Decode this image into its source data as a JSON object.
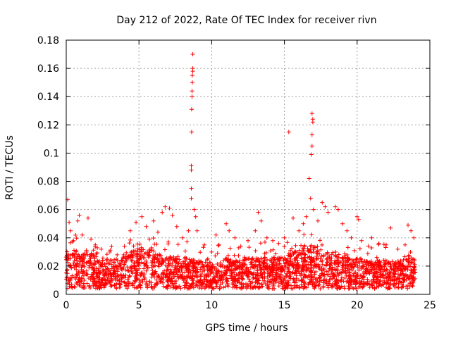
{
  "chart_data": {
    "type": "scatter",
    "title": "Day 212 of 2022, Rate Of TEC Index for receiver rivn",
    "xlabel": "GPS time / hours",
    "ylabel": "ROTI / TECUs",
    "xlim": [
      0,
      25
    ],
    "ylim": [
      0,
      0.18
    ],
    "xticks": [
      0,
      5,
      10,
      15,
      20,
      25
    ],
    "xtick_labels": [
      "0",
      "5",
      "10",
      "15",
      "20",
      "25"
    ],
    "yticks": [
      0,
      0.02,
      0.04,
      0.06,
      0.08,
      0.1,
      0.12,
      0.14,
      0.16,
      0.18
    ],
    "ytick_labels": [
      "0",
      "0.02",
      "0.04",
      "0.06",
      "0.08",
      "0.1",
      "0.12",
      "0.14",
      "0.16",
      "0.18"
    ],
    "grid": true,
    "marker": "+",
    "color": "#ff0000",
    "series": [
      {
        "name": "ROTI",
        "points": [
          [
            0.1,
            0.067
          ],
          [
            0.2,
            0.051
          ],
          [
            0.3,
            0.045
          ],
          [
            0.5,
            0.038
          ],
          [
            0.8,
            0.052
          ],
          [
            0.9,
            0.056
          ],
          [
            1.1,
            0.042
          ],
          [
            1.5,
            0.054
          ],
          [
            1.7,
            0.039
          ],
          [
            2.0,
            0.035
          ],
          [
            2.4,
            0.032
          ],
          [
            3.0,
            0.03
          ],
          [
            3.5,
            0.028
          ],
          [
            4.0,
            0.034
          ],
          [
            4.4,
            0.045
          ],
          [
            4.8,
            0.051
          ],
          [
            5.2,
            0.055
          ],
          [
            5.5,
            0.048
          ],
          [
            6.0,
            0.052
          ],
          [
            6.3,
            0.044
          ],
          [
            6.6,
            0.058
          ],
          [
            6.8,
            0.062
          ],
          [
            7.1,
            0.061
          ],
          [
            7.3,
            0.056
          ],
          [
            7.6,
            0.048
          ],
          [
            8.0,
            0.04
          ],
          [
            8.4,
            0.045
          ],
          [
            8.6,
            0.068
          ],
          [
            8.6,
            0.075
          ],
          [
            8.6,
            0.088
          ],
          [
            8.6,
            0.091
          ],
          [
            8.62,
            0.115
          ],
          [
            8.62,
            0.131
          ],
          [
            8.65,
            0.14
          ],
          [
            8.65,
            0.144
          ],
          [
            8.67,
            0.15
          ],
          [
            8.67,
            0.155
          ],
          [
            8.7,
            0.158
          ],
          [
            8.7,
            0.16
          ],
          [
            8.7,
            0.17
          ],
          [
            8.8,
            0.06
          ],
          [
            8.9,
            0.055
          ],
          [
            9.0,
            0.045
          ],
          [
            9.5,
            0.035
          ],
          [
            10.0,
            0.03
          ],
          [
            10.3,
            0.042
          ],
          [
            10.5,
            0.035
          ],
          [
            11.0,
            0.05
          ],
          [
            11.2,
            0.045
          ],
          [
            11.6,
            0.04
          ],
          [
            12.0,
            0.034
          ],
          [
            12.5,
            0.038
          ],
          [
            13.0,
            0.045
          ],
          [
            13.2,
            0.058
          ],
          [
            13.4,
            0.052
          ],
          [
            13.8,
            0.04
          ],
          [
            14.2,
            0.038
          ],
          [
            14.6,
            0.036
          ],
          [
            15.0,
            0.04
          ],
          [
            15.3,
            0.115
          ],
          [
            15.6,
            0.054
          ],
          [
            16.0,
            0.045
          ],
          [
            16.3,
            0.05
          ],
          [
            16.5,
            0.055
          ],
          [
            16.7,
            0.082
          ],
          [
            16.8,
            0.068
          ],
          [
            16.85,
            0.099
          ],
          [
            16.9,
            0.105
          ],
          [
            16.9,
            0.113
          ],
          [
            16.95,
            0.122
          ],
          [
            16.95,
            0.124
          ],
          [
            16.9,
            0.128
          ],
          [
            17.0,
            0.06
          ],
          [
            17.3,
            0.052
          ],
          [
            17.6,
            0.065
          ],
          [
            17.8,
            0.062
          ],
          [
            18.0,
            0.058
          ],
          [
            18.5,
            0.062
          ],
          [
            18.7,
            0.06
          ],
          [
            19.0,
            0.05
          ],
          [
            19.3,
            0.045
          ],
          [
            19.6,
            0.04
          ],
          [
            20.0,
            0.055
          ],
          [
            20.1,
            0.053
          ],
          [
            20.3,
            0.038
          ],
          [
            21.0,
            0.04
          ],
          [
            21.5,
            0.036
          ],
          [
            22.0,
            0.035
          ],
          [
            22.3,
            0.047
          ],
          [
            22.8,
            0.032
          ],
          [
            23.3,
            0.035
          ],
          [
            23.5,
            0.049
          ],
          [
            23.7,
            0.045
          ],
          [
            23.9,
            0.04
          ]
        ],
        "baseline": [
          [
            0.0,
            0.022
          ],
          [
            0.5,
            0.025
          ],
          [
            1.0,
            0.023
          ],
          [
            1.5,
            0.024
          ],
          [
            2.0,
            0.021
          ],
          [
            2.5,
            0.02
          ],
          [
            3.0,
            0.019
          ],
          [
            3.5,
            0.02
          ],
          [
            4.0,
            0.021
          ],
          [
            4.5,
            0.024
          ],
          [
            5.0,
            0.026
          ],
          [
            5.5,
            0.025
          ],
          [
            6.0,
            0.024
          ],
          [
            6.5,
            0.022
          ],
          [
            7.0,
            0.021
          ],
          [
            7.5,
            0.02
          ],
          [
            8.0,
            0.02
          ],
          [
            8.5,
            0.02
          ],
          [
            9.0,
            0.019
          ],
          [
            9.5,
            0.018
          ],
          [
            10.0,
            0.018
          ],
          [
            10.5,
            0.019
          ],
          [
            11.0,
            0.02
          ],
          [
            11.5,
            0.019
          ],
          [
            12.0,
            0.019
          ],
          [
            12.5,
            0.02
          ],
          [
            13.0,
            0.021
          ],
          [
            13.5,
            0.02
          ],
          [
            14.0,
            0.02
          ],
          [
            14.5,
            0.021
          ],
          [
            15.0,
            0.022
          ],
          [
            15.5,
            0.023
          ],
          [
            16.0,
            0.024
          ],
          [
            16.5,
            0.026
          ],
          [
            17.0,
            0.025
          ],
          [
            17.5,
            0.024
          ],
          [
            18.0,
            0.023
          ],
          [
            18.5,
            0.022
          ],
          [
            19.0,
            0.021
          ],
          [
            19.5,
            0.02
          ],
          [
            20.0,
            0.02
          ],
          [
            20.5,
            0.019
          ],
          [
            21.0,
            0.019
          ],
          [
            21.5,
            0.019
          ],
          [
            22.0,
            0.019
          ],
          [
            22.5,
            0.019
          ],
          [
            23.0,
            0.019
          ],
          [
            23.5,
            0.02
          ],
          [
            24.0,
            0.02
          ]
        ]
      }
    ]
  }
}
